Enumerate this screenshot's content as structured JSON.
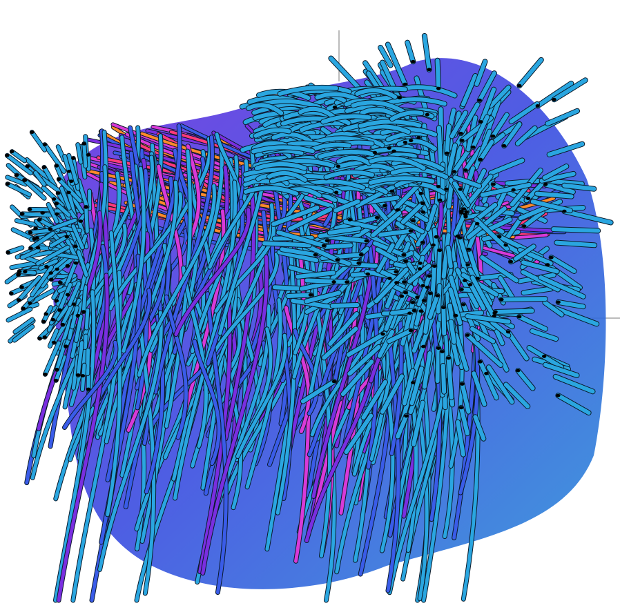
{
  "visualization": {
    "kind": "3d-streamtube-render",
    "background": "#ffffff",
    "tube_color": "#2aa6e0",
    "tube_outline": "#0a1a2a",
    "seed_dot_color": "#000000",
    "colormap": [
      "#2aa6e0",
      "#3a5ce8",
      "#7a2ee0",
      "#d83ad8",
      "#ff3a7a",
      "#ff8a2a",
      "#a8f02a"
    ],
    "axes_visible": true,
    "grid": false
  }
}
